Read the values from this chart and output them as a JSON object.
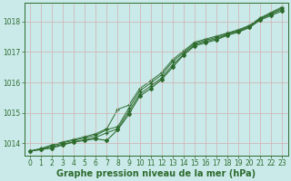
{
  "title": "Graphe pression niveau de la mer (hPa)",
  "bg_color": "#caeaea",
  "grid_color": "#d0b8b8",
  "line_color": "#2d6b2d",
  "xlim": [
    -0.5,
    23.5
  ],
  "ylim": [
    1013.6,
    1018.6
  ],
  "yticks": [
    1014,
    1015,
    1016,
    1017,
    1018
  ],
  "xticks": [
    0,
    1,
    2,
    3,
    4,
    5,
    6,
    7,
    8,
    9,
    10,
    11,
    12,
    13,
    14,
    15,
    16,
    17,
    18,
    19,
    20,
    21,
    22,
    23
  ],
  "series": [
    [
      1013.75,
      1013.8,
      1013.85,
      1013.95,
      1014.05,
      1014.1,
      1014.15,
      1014.1,
      1014.45,
      1014.95,
      1015.55,
      1015.8,
      1016.1,
      1016.5,
      1016.9,
      1017.2,
      1017.3,
      1017.4,
      1017.55,
      1017.65,
      1017.8,
      1018.05,
      1018.2,
      1018.35
    ],
    [
      1013.75,
      1013.8,
      1013.88,
      1013.98,
      1014.05,
      1014.12,
      1014.2,
      1014.35,
      1014.48,
      1015.05,
      1015.62,
      1015.88,
      1016.15,
      1016.58,
      1016.92,
      1017.24,
      1017.34,
      1017.44,
      1017.57,
      1017.67,
      1017.82,
      1018.08,
      1018.24,
      1018.4
    ],
    [
      1013.75,
      1013.83,
      1013.92,
      1014.02,
      1014.1,
      1014.18,
      1014.27,
      1014.45,
      1014.55,
      1015.15,
      1015.72,
      1015.98,
      1016.25,
      1016.68,
      1016.98,
      1017.28,
      1017.38,
      1017.48,
      1017.6,
      1017.7,
      1017.85,
      1018.1,
      1018.27,
      1018.44
    ],
    [
      1013.75,
      1013.83,
      1013.95,
      1014.05,
      1014.13,
      1014.22,
      1014.32,
      1014.48,
      1015.12,
      1015.25,
      1015.8,
      1016.05,
      1016.32,
      1016.75,
      1017.03,
      1017.32,
      1017.42,
      1017.52,
      1017.62,
      1017.73,
      1017.87,
      1018.12,
      1018.3,
      1018.48
    ]
  ],
  "tick_fontsize": 5.5,
  "title_fontsize": 7.0
}
